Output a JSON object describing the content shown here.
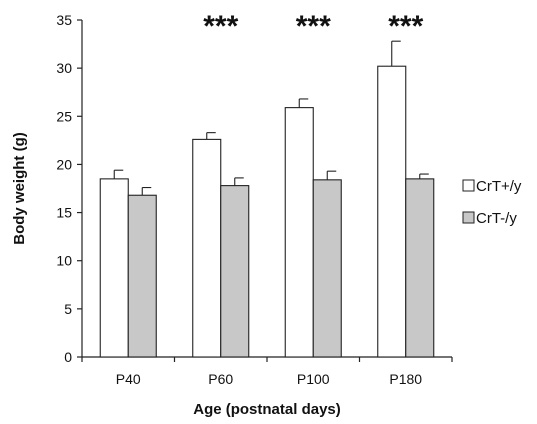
{
  "chart_data": {
    "type": "bar",
    "title": "",
    "xlabel": "Age (postnatal days)",
    "ylabel": "Body weight (g)",
    "ylim": [
      0,
      35
    ],
    "yticks": [
      0,
      5,
      10,
      15,
      20,
      25,
      30,
      35
    ],
    "categories": [
      "P40",
      "P60",
      "P100",
      "P180"
    ],
    "series": [
      {
        "name": "CrT+/y",
        "values": [
          18.5,
          22.6,
          25.9,
          30.2
        ],
        "errors": [
          0.9,
          0.7,
          0.9,
          2.6
        ],
        "color": "#ffffff"
      },
      {
        "name": "CrT-/y",
        "values": [
          16.8,
          17.8,
          18.4,
          18.5
        ],
        "errors": [
          0.8,
          0.8,
          0.9,
          0.5
        ],
        "color": "#c8c8c8"
      }
    ],
    "significance": [
      "",
      "***",
      "***",
      "***"
    ],
    "legend_position": "right",
    "grid": false
  }
}
